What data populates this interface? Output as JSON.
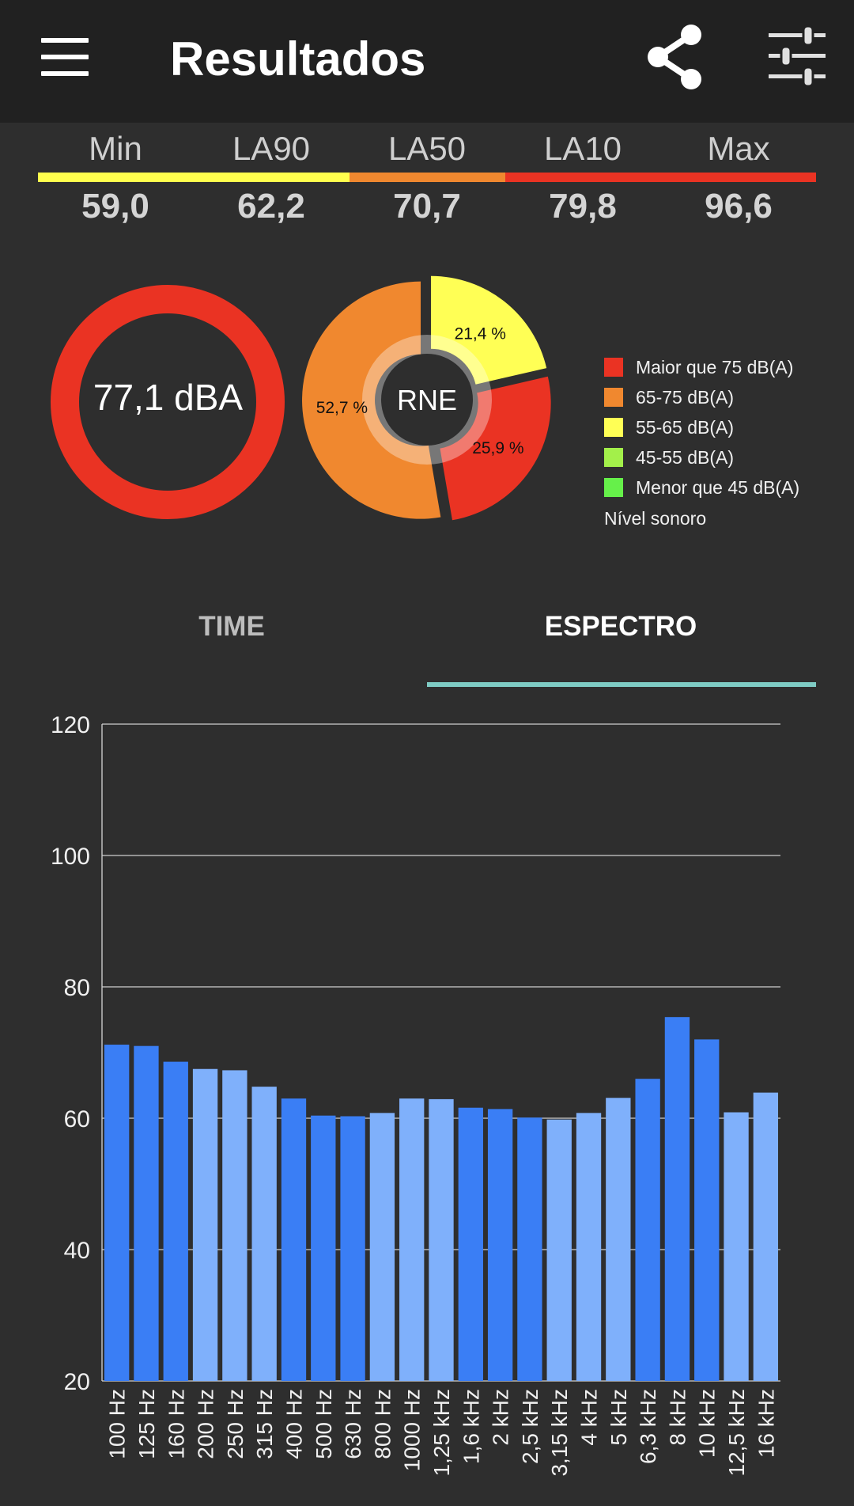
{
  "app_bar": {
    "title": "Resultados",
    "menu_icon": "hamburger-menu-icon",
    "share_icon": "share-icon",
    "settings_icon": "equalizer-sliders-icon"
  },
  "stats": [
    {
      "label": "Min",
      "value": "59,0"
    },
    {
      "label": "LA90",
      "value": "62,2"
    },
    {
      "label": "LA50",
      "value": "70,7"
    },
    {
      "label": "LA10",
      "value": "79,8"
    },
    {
      "label": "Max",
      "value": "96,6"
    }
  ],
  "stat_bar_colors": [
    "#ffff4d",
    "#f0882f",
    "#ea3323"
  ],
  "gauge": {
    "value": "77,1 dBA",
    "color": "#ea3323"
  },
  "donut": {
    "center_label": "RNE",
    "slices": [
      {
        "label": "21,4 %",
        "percent": 21.4,
        "color": "#ffff55"
      },
      {
        "label": "25,9 %",
        "percent": 25.9,
        "color": "#ea3323"
      },
      {
        "label": "52,7 %",
        "percent": 52.7,
        "color": "#f0882f"
      }
    ]
  },
  "legend": {
    "items": [
      {
        "label": "Maior que 75 dB(A)",
        "color": "#ea3323"
      },
      {
        "label": "65-75 dB(A)",
        "color": "#f0882f"
      },
      {
        "label": "55-65 dB(A)",
        "color": "#ffff55"
      },
      {
        "label": "45-55 dB(A)",
        "color": "#a3f04a"
      },
      {
        "label": "Menor que 45 dB(A)",
        "color": "#66f04a"
      }
    ],
    "title": "Nível sonoro"
  },
  "tabs": [
    {
      "label": "TIME",
      "selected": false
    },
    {
      "label": "ESPECTRO",
      "selected": true
    }
  ],
  "chart_data": {
    "type": "bar",
    "categories": [
      "100 Hz",
      "125 Hz",
      "160 Hz",
      "200 Hz",
      "250 Hz",
      "315 Hz",
      "400 Hz",
      "500 Hz",
      "630 Hz",
      "800 Hz",
      "1000 Hz",
      "1,25 kHz",
      "1,6 kHz",
      "2 kHz",
      "2,5 kHz",
      "3,15 kHz",
      "4 kHz",
      "5 kHz",
      "6,3 kHz",
      "8 kHz",
      "10 kHz",
      "12,5 kHz",
      "16 kHz"
    ],
    "values": [
      71.2,
      71.0,
      68.6,
      67.5,
      67.3,
      64.8,
      63.0,
      60.4,
      60.3,
      60.8,
      63.0,
      62.9,
      61.6,
      61.4,
      60.1,
      59.8,
      60.8,
      63.1,
      66.0,
      75.4,
      72.0,
      60.9,
      63.9
    ],
    "bar_colors": [
      "#3a7ef5",
      "#3a7ef5",
      "#3a7ef5",
      "#7fb0fb",
      "#7fb0fb",
      "#7fb0fb",
      "#3a7ef5",
      "#3a7ef5",
      "#3a7ef5",
      "#7fb0fb",
      "#7fb0fb",
      "#7fb0fb",
      "#3a7ef5",
      "#3a7ef5",
      "#3a7ef5",
      "#7fb0fb",
      "#7fb0fb",
      "#7fb0fb",
      "#3a7ef5",
      "#3a7ef5",
      "#3a7ef5",
      "#7fb0fb",
      "#7fb0fb"
    ],
    "yticks": [
      "20",
      "40",
      "60",
      "80",
      "100",
      "120"
    ],
    "ylim": [
      20,
      120
    ],
    "grid": true
  }
}
